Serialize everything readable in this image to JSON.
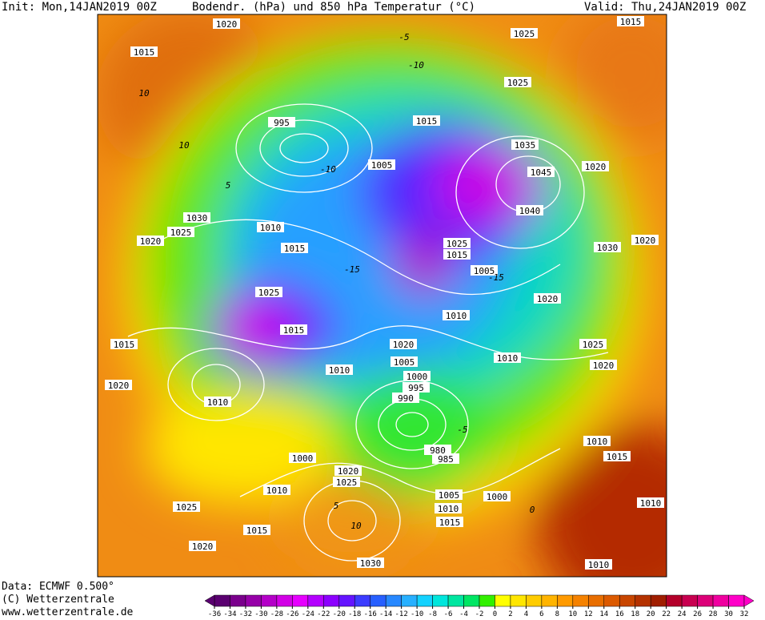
{
  "header": {
    "init": "Init: Mon,14JAN2019 00Z",
    "title": "Bodendr. (hPa) und 850 hPa Temperatur (°C)",
    "valid": "Valid: Thu,24JAN2019 00Z"
  },
  "footer": {
    "data": "Data: ECMWF  0.500°",
    "copyright": "(C) Wetterzentrale",
    "url": "www.wetterzentrale.de"
  },
  "colorbar": {
    "ticks": [
      -36,
      -34,
      -32,
      -30,
      -28,
      -26,
      -24,
      -22,
      -20,
      -18,
      -16,
      -14,
      -12,
      -10,
      -8,
      -6,
      -4,
      -2,
      0,
      2,
      4,
      6,
      8,
      10,
      12,
      14,
      16,
      18,
      20,
      22,
      24,
      26,
      28,
      30,
      32
    ],
    "colors": [
      "#5a0070",
      "#7a008c",
      "#9600a8",
      "#b400c8",
      "#d200e6",
      "#e600ff",
      "#b400ff",
      "#8c00ff",
      "#6414ff",
      "#3c3cff",
      "#2860ff",
      "#2888ff",
      "#28b0ff",
      "#14d2ff",
      "#00e6dc",
      "#00e6a0",
      "#00e664",
      "#32f000",
      "#ffff00",
      "#ffe600",
      "#ffcc00",
      "#ffb400",
      "#ff9a00",
      "#f58200",
      "#e86e00",
      "#dc5a00",
      "#c84600",
      "#b43200",
      "#a01e00",
      "#b4002a",
      "#c80050",
      "#dc0078",
      "#f000a0",
      "#ff00c8"
    ]
  },
  "isobars": [
    1020,
    1015,
    995,
    1005,
    1015,
    1025,
    1025,
    1035,
    1045,
    1040,
    1030,
    1025,
    1020,
    1010,
    1015,
    1025,
    1015,
    1010,
    1020,
    1005,
    1000,
    995,
    990,
    1010,
    1000,
    1020,
    1025,
    1010,
    1025,
    1015,
    1020,
    1030,
    980,
    985,
    1005,
    1000,
    1010,
    1015,
    1025,
    1015,
    1005,
    1010,
    1010,
    1020,
    1025,
    1020,
    1030,
    1020,
    1015,
    1010,
    1010,
    1010,
    1015,
    1020,
    1015,
    1020
  ],
  "temperature_labels": [
    10,
    10,
    5,
    -5,
    -10,
    -10,
    -15,
    -15,
    -5,
    10,
    0,
    5
  ]
}
